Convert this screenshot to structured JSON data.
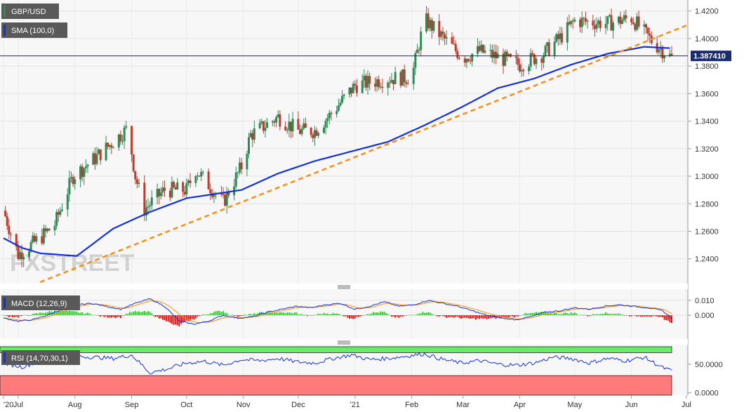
{
  "chart_data": [
    {
      "type": "candlestick",
      "panel": "price",
      "labels": [
        "GBP/USD",
        "SMA (100,0)"
      ],
      "watermark": "FXSTREET",
      "current_price_label": "1.387410",
      "current_price": 1.38741,
      "ylim": [
        1.222,
        1.427
      ],
      "y_ticks": [
        "1.2400",
        "1.2600",
        "1.2800",
        "1.3000",
        "1.3200",
        "1.3400",
        "1.3600",
        "1.3800",
        "1.4000",
        "1.4200"
      ],
      "y_tick_values": [
        1.24,
        1.26,
        1.28,
        1.3,
        1.32,
        1.34,
        1.36,
        1.38,
        1.4,
        1.42
      ],
      "x_ticks": [
        "'20",
        "Jul",
        "Aug",
        "Sep",
        "Oct",
        "Nov",
        "Dec",
        "'21",
        "Feb",
        "Mar",
        "Apr",
        "May",
        "Jun",
        "Jul"
      ],
      "x_tick_days": [
        0,
        8,
        39,
        70,
        100,
        131,
        161,
        192,
        223,
        251,
        282,
        312,
        343,
        373
      ],
      "close_anchor_days": [
        0,
        8,
        20,
        28,
        38,
        50,
        68,
        72,
        77,
        88,
        100,
        105,
        120,
        130,
        135,
        150,
        161,
        170,
        178,
        192,
        210,
        223,
        230,
        251,
        260,
        282,
        295,
        305,
        312,
        330,
        343,
        355,
        365
      ],
      "close_anchor_values": [
        1.275,
        1.243,
        1.255,
        1.265,
        1.3,
        1.313,
        1.335,
        1.3,
        1.276,
        1.29,
        1.29,
        1.305,
        1.281,
        1.307,
        1.33,
        1.343,
        1.333,
        1.333,
        1.344,
        1.366,
        1.371,
        1.372,
        1.414,
        1.386,
        1.391,
        1.381,
        1.389,
        1.402,
        1.413,
        1.411,
        1.415,
        1.397,
        1.386
      ],
      "sma_anchor_days": [
        0,
        10,
        20,
        40,
        60,
        80,
        100,
        130,
        150,
        170,
        190,
        210,
        230,
        250,
        270,
        290,
        310,
        330,
        350,
        365
      ],
      "sma_anchor_values": [
        1.255,
        1.248,
        1.244,
        1.242,
        1.262,
        1.274,
        1.284,
        1.29,
        1.302,
        1.311,
        1.318,
        1.325,
        1.337,
        1.35,
        1.364,
        1.371,
        1.381,
        1.389,
        1.394,
        1.393
      ],
      "trendline": {
        "from": [
          20,
          1.223
        ],
        "to": [
          373,
          1.4095
        ]
      },
      "series": [
        {
          "name": "GBP/USD",
          "color_up": "#2e8b57",
          "color_down": "#c0392b"
        },
        {
          "name": "SMA (100,0)",
          "color": "#1530d6"
        },
        {
          "name": "trendline",
          "color": "#f5921e",
          "style": "dashed"
        }
      ]
    },
    {
      "type": "macd",
      "panel": "macd",
      "label": "MACD (12,26,9)",
      "ylim": [
        -0.016,
        0.0175
      ],
      "y_ticks": [
        "0.010",
        "0.000"
      ],
      "y_tick_values": [
        0.01,
        0.0
      ],
      "macd_anchor_days": [
        0,
        8,
        16,
        24,
        32,
        40,
        48,
        56,
        64,
        72,
        80,
        88,
        96,
        104,
        112,
        120,
        128,
        136,
        144,
        152,
        160,
        168,
        176,
        184,
        192,
        200,
        208,
        216,
        224,
        232,
        240,
        248,
        256,
        264,
        272,
        280,
        288,
        296,
        304,
        312,
        320,
        328,
        336,
        344,
        352,
        360,
        365
      ],
      "macd_anchor_values": [
        -0.002,
        -0.004,
        -0.003,
        0.0,
        0.004,
        0.007,
        0.008,
        0.006,
        0.004,
        0.008,
        0.011,
        0.006,
        -0.004,
        -0.006,
        -0.004,
        0.0,
        -0.002,
        -0.001,
        0.002,
        0.004,
        0.006,
        0.005,
        0.007,
        0.008,
        0.004,
        0.006,
        0.009,
        0.006,
        0.007,
        0.01,
        0.008,
        0.006,
        0.003,
        0.0,
        -0.002,
        -0.003,
        -0.001,
        0.002,
        0.003,
        0.005,
        0.004,
        0.006,
        0.007,
        0.006,
        0.005,
        0.003,
        -0.002
      ],
      "signal_color": "#ff8c00",
      "macd_color": "#1530d6",
      "hist_up_color": "#33cc33",
      "hist_down_color": "#ee1111"
    },
    {
      "type": "rsi",
      "panel": "rsi",
      "label": "RSI (14,70,30,1)",
      "ylim": [
        -4,
        84
      ],
      "y_ticks": [
        "50.0000",
        "0.0000"
      ],
      "y_tick_values": [
        50,
        0
      ],
      "overbought": 70,
      "oversold": 30,
      "rsi_anchor_days": [
        0,
        10,
        20,
        30,
        40,
        50,
        60,
        70,
        80,
        90,
        100,
        110,
        120,
        130,
        140,
        150,
        160,
        170,
        180,
        190,
        200,
        210,
        220,
        230,
        240,
        250,
        260,
        270,
        280,
        290,
        300,
        310,
        320,
        330,
        340,
        350,
        360,
        365
      ],
      "rsi_anchor_values": [
        52,
        45,
        55,
        60,
        64,
        62,
        60,
        66,
        35,
        42,
        52,
        55,
        48,
        58,
        56,
        60,
        54,
        52,
        60,
        66,
        58,
        60,
        64,
        68,
        58,
        52,
        56,
        50,
        48,
        52,
        62,
        60,
        52,
        60,
        56,
        62,
        44,
        38
      ],
      "overbought_color": "#66ee66",
      "oversold_color": "#ff7b7b",
      "line_color": "#1530d6"
    }
  ]
}
